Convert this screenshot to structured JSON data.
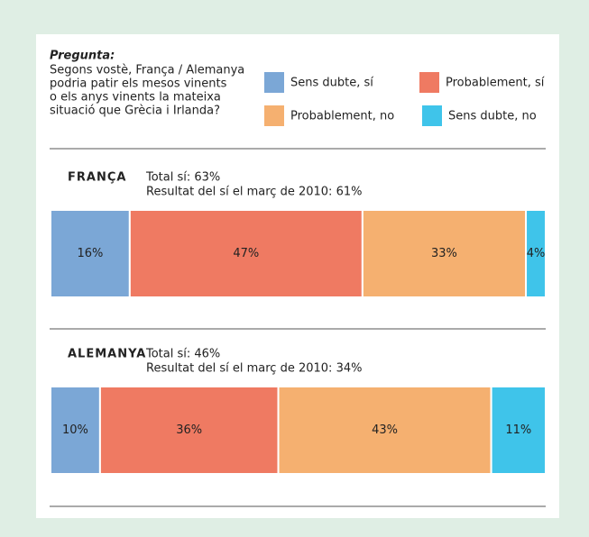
{
  "question_label": "Pregunta:",
  "question_lines": [
    "Segons vostè, França / Alemanya",
    "podria patir els mesos vinents",
    "o els anys vinents la mateixa",
    "situació que Grècia i Irlanda?"
  ],
  "chart_data": {
    "type": "stacked_bar_horizontal",
    "categories": [
      "FRANÇA",
      "ALEMANYA"
    ],
    "annotations": [
      [
        "Total sí: 63%",
        "Resultat del sí el març de 2010: 61%"
      ],
      [
        "Total sí: 46%",
        "Resultat del sí el març de 2010: 34%"
      ]
    ],
    "xlim": [
      0,
      100
    ],
    "series": [
      {
        "name": "Sens dubte, sí",
        "color": "#7ba7d6",
        "values": [
          16,
          10
        ],
        "value_labels": [
          "16%",
          "10%"
        ]
      },
      {
        "name": "Probablement, sí",
        "color": "#ef7a62",
        "values": [
          47,
          36
        ],
        "value_labels": [
          "47%",
          "36%"
        ]
      },
      {
        "name": "Probablement, no",
        "color": "#f5b070",
        "values": [
          33,
          43
        ],
        "value_labels": [
          "33%",
          "43%"
        ]
      },
      {
        "name": "Sens dubte, no",
        "color": "#3fc4ea",
        "values": [
          4,
          11
        ],
        "value_labels": [
          "4%",
          "11%"
        ]
      }
    ]
  }
}
